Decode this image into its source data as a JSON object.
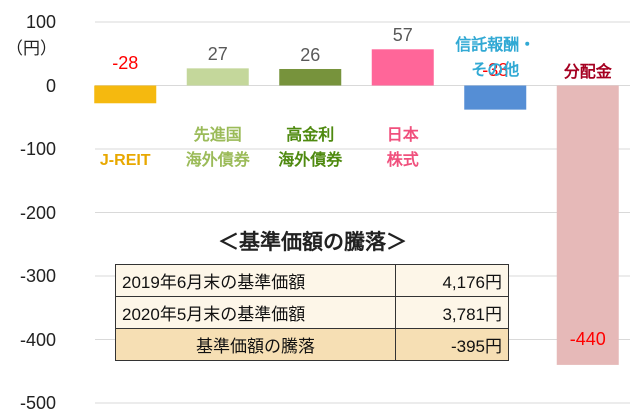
{
  "chart_data": {
    "type": "bar",
    "unit": "（円）",
    "categories": [
      "J-REIT",
      "先進国\n海外債券",
      "高金利\n海外債券",
      "日本\n株式",
      "信託報酬・\nその他",
      "分配金"
    ],
    "values": [
      -28,
      27,
      26,
      57,
      -38,
      -440
    ],
    "colors": [
      "#f5b90f",
      "#c4d79b",
      "#77933c",
      "#ff6699",
      "#558ed5",
      "#e6b9b8"
    ],
    "category_colors": [
      "#e8a800",
      "#9bbb59",
      "#4f8a10",
      "#f0507d",
      "#31a9d4",
      "#a50021"
    ],
    "value_label_colors": [
      "#ff0000",
      "#595959",
      "#595959",
      "#595959",
      "#ff0000",
      "#ff0000"
    ],
    "ylim": [
      -500,
      100
    ],
    "yticks": [
      100,
      0,
      -100,
      -200,
      -300,
      -400,
      -500
    ],
    "grid": true
  },
  "table": {
    "title": "＜基準価額の騰落＞",
    "rows": [
      [
        "2019年6月末の基準価額",
        "4,176円"
      ],
      [
        "2020年5月末の基準価額",
        "3,781円"
      ],
      [
        "基準価額の騰落",
        "-395円"
      ]
    ],
    "row_colors": [
      "#fdf6e8",
      "#fdf6e8",
      "#f6dfb4"
    ]
  }
}
